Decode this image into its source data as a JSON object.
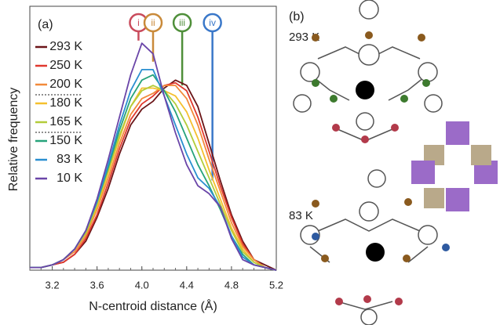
{
  "chart_data": {
    "type": "line",
    "panel_label": "(a)",
    "x_label": "N-centroid distance (Å)",
    "y_label": "Relative frequency",
    "x": [
      3.0,
      3.1,
      3.2,
      3.3,
      3.4,
      3.5,
      3.6,
      3.7,
      3.8,
      3.9,
      4.0,
      4.1,
      4.2,
      4.3,
      4.4,
      4.5,
      4.6,
      4.7,
      4.8,
      4.9,
      5.0,
      5.1,
      5.2
    ],
    "xlim": [
      3.0,
      5.2
    ],
    "xticks": [
      3.2,
      3.6,
      {
        "value": 4,
        "label": "4.0"
      },
      4.4,
      4.8,
      5.2
    ],
    "ylim": [
      0,
      1
    ],
    "series": [
      {
        "name": "293 K",
        "color": "#6b1518",
        "values": [
          0.01,
          0.01,
          0.02,
          0.03,
          0.06,
          0.11,
          0.2,
          0.31,
          0.44,
          0.55,
          0.61,
          0.64,
          0.69,
          0.72,
          0.7,
          0.62,
          0.48,
          0.34,
          0.21,
          0.11,
          0.04,
          0.02,
          0.0
        ]
      },
      {
        "name": "250 K",
        "color": "#e0392e",
        "values": [
          0.01,
          0.01,
          0.02,
          0.03,
          0.06,
          0.12,
          0.21,
          0.33,
          0.46,
          0.57,
          0.63,
          0.66,
          0.7,
          0.71,
          0.68,
          0.58,
          0.45,
          0.32,
          0.2,
          0.1,
          0.04,
          0.01,
          0.0
        ]
      },
      {
        "name": "200 K",
        "color": "#f28a3b",
        "values": [
          0.01,
          0.01,
          0.02,
          0.04,
          0.07,
          0.13,
          0.23,
          0.35,
          0.48,
          0.59,
          0.65,
          0.67,
          0.7,
          0.7,
          0.65,
          0.55,
          0.42,
          0.3,
          0.18,
          0.09,
          0.04,
          0.01,
          0.0
        ]
      },
      {
        "name": "180 K",
        "color": "#f5c02e",
        "values": [
          0.01,
          0.01,
          0.02,
          0.04,
          0.08,
          0.14,
          0.24,
          0.37,
          0.5,
          0.62,
          0.69,
          0.69,
          0.68,
          0.66,
          0.6,
          0.5,
          0.38,
          0.27,
          0.16,
          0.08,
          0.03,
          0.01,
          0.0
        ]
      },
      {
        "name": "165 K",
        "color": "#b3cc3a",
        "values": [
          0.01,
          0.01,
          0.02,
          0.04,
          0.08,
          0.14,
          0.25,
          0.38,
          0.51,
          0.62,
          0.68,
          0.7,
          0.68,
          0.63,
          0.55,
          0.45,
          0.35,
          0.25,
          0.15,
          0.07,
          0.03,
          0.01,
          0.0
        ]
      },
      {
        "name": "150 K",
        "color": "#26a37a",
        "values": [
          0.01,
          0.01,
          0.02,
          0.04,
          0.08,
          0.15,
          0.26,
          0.39,
          0.53,
          0.65,
          0.72,
          0.74,
          0.68,
          0.6,
          0.5,
          0.4,
          0.32,
          0.23,
          0.13,
          0.06,
          0.02,
          0.01,
          0.0
        ]
      },
      {
        "name": "83 K",
        "color": "#2a8fd0",
        "values": [
          0.01,
          0.01,
          0.02,
          0.04,
          0.08,
          0.15,
          0.26,
          0.4,
          0.55,
          0.68,
          0.76,
          0.76,
          0.66,
          0.55,
          0.44,
          0.35,
          0.31,
          0.24,
          0.13,
          0.05,
          0.02,
          0.01,
          0.0
        ]
      },
      {
        "name": "10 K",
        "color": "#6a45a8",
        "values": [
          0.01,
          0.01,
          0.02,
          0.04,
          0.08,
          0.15,
          0.27,
          0.42,
          0.58,
          0.74,
          0.86,
          0.82,
          0.66,
          0.52,
          0.4,
          0.32,
          0.29,
          0.24,
          0.12,
          0.04,
          0.02,
          0.01,
          0.0
        ]
      }
    ],
    "markers": [
      {
        "label": "i",
        "x": 3.97,
        "y_end": 0.87,
        "color": "#c94b5c"
      },
      {
        "label": "ii",
        "x": 4.1,
        "y_end": 0.79,
        "color": "#c98a3a"
      },
      {
        "label": "iii",
        "x": 4.36,
        "y_end": 0.7,
        "color": "#4f8f3a"
      },
      {
        "label": "iv",
        "x": 4.63,
        "y_end": 0.34,
        "color": "#3a78c9"
      }
    ]
  },
  "panel_b": {
    "label": "(b)",
    "temps": [
      "293 K",
      "83 K"
    ]
  }
}
